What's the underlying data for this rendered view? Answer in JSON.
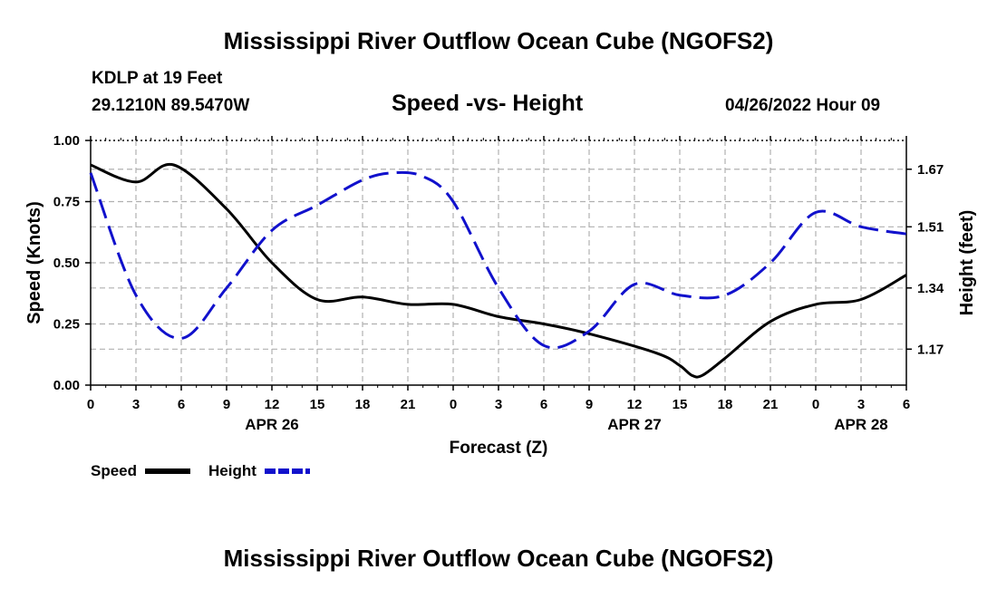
{
  "page": {
    "title_top": "Mississippi River Outflow Ocean Cube (NGOFS2)",
    "title_bottom": "Mississippi River Outflow Ocean Cube (NGOFS2)",
    "station": "KDLP at 19 Feet",
    "coords": "29.1210N  89.5470W",
    "subtitle": "Speed -vs- Height",
    "datetime": "04/26/2022 Hour 09"
  },
  "colors": {
    "speed": "#000000",
    "height": "#1111cc",
    "grid": "#b0b0b0"
  },
  "chart_data": {
    "type": "line",
    "title": "Speed -vs- Height",
    "xlabel": "Forecast (Z)",
    "ylabel": "Speed (Knots)",
    "y2label": "Height (feet)",
    "xlim": [
      0,
      54
    ],
    "ylim": [
      0,
      1.0
    ],
    "y2lim": [
      1.07,
      1.75
    ],
    "x_ticks": [
      0,
      3,
      6,
      9,
      12,
      15,
      18,
      21,
      24,
      27,
      30,
      33,
      36,
      39,
      42,
      45,
      48,
      51,
      54
    ],
    "x_tick_labels": [
      "0",
      "3",
      "6",
      "9",
      "12",
      "15",
      "18",
      "21",
      "0",
      "3",
      "6",
      "9",
      "12",
      "15",
      "18",
      "21",
      "0",
      "3",
      "6"
    ],
    "date_labels": [
      {
        "x": 12,
        "label": "APR 26"
      },
      {
        "x": 36,
        "label": "APR 27"
      },
      {
        "x": 51,
        "label": "APR 28"
      }
    ],
    "y_ticks": [
      0,
      0.25,
      0.5,
      0.75,
      1.0
    ],
    "y_tick_labels": [
      "0.00",
      "0.25",
      "0.50",
      "0.75",
      "1.00"
    ],
    "y2_ticks": [
      1.17,
      1.34,
      1.51,
      1.67
    ],
    "y2_tick_labels": [
      "1.17",
      "1.34",
      "1.51",
      "1.67"
    ],
    "grid": true,
    "series": [
      {
        "name": "Speed",
        "axis": "left",
        "style": "solid",
        "x": [
          0,
          3,
          5.5,
          9,
          12,
          15,
          18,
          21,
          24,
          27,
          30,
          33,
          37.5,
          39,
          39.8,
          40.5,
          42,
          45,
          48,
          51,
          54
        ],
        "values": [
          0.9,
          0.83,
          0.9,
          0.72,
          0.5,
          0.35,
          0.36,
          0.33,
          0.33,
          0.28,
          0.25,
          0.21,
          0.13,
          0.08,
          0.04,
          0.04,
          0.11,
          0.26,
          0.33,
          0.35,
          0.45
        ]
      },
      {
        "name": "Height",
        "axis": "right",
        "style": "dashed",
        "x": [
          0,
          3,
          6,
          9,
          12,
          15,
          18,
          20,
          22,
          24,
          27,
          30,
          33,
          36,
          39,
          42,
          45,
          48,
          51,
          54
        ],
        "values": [
          1.66,
          1.32,
          1.2,
          1.34,
          1.5,
          1.57,
          1.64,
          1.66,
          1.65,
          1.58,
          1.34,
          1.18,
          1.22,
          1.35,
          1.32,
          1.32,
          1.41,
          1.55,
          1.51,
          1.49
        ]
      }
    ],
    "legend_position": "bottom-left"
  }
}
